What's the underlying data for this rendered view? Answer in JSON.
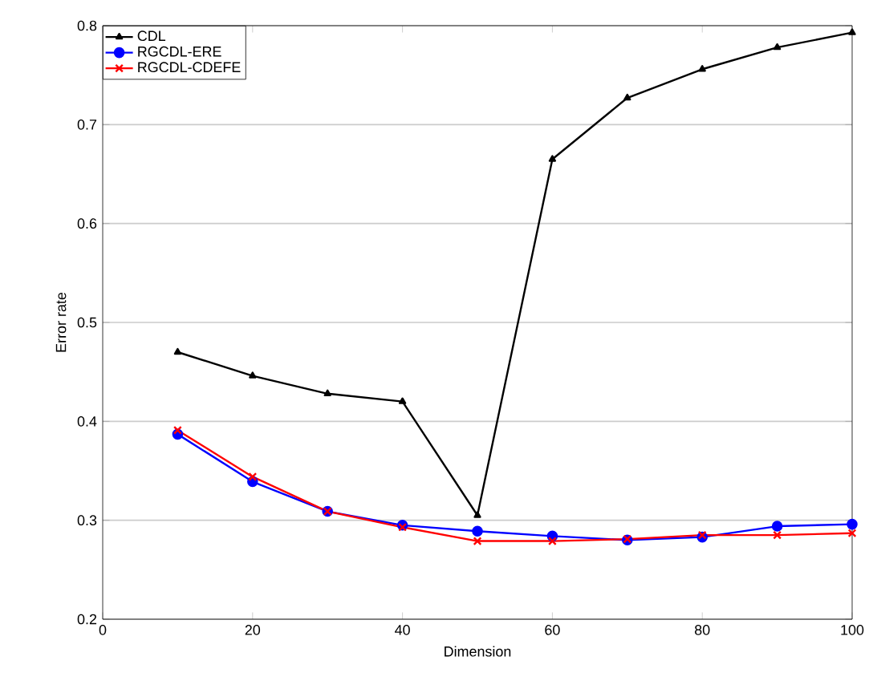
{
  "chart_data": {
    "type": "line",
    "xlabel": "Dimension",
    "ylabel": "Error rate",
    "x": [
      10,
      20,
      30,
      40,
      50,
      60,
      70,
      80,
      90,
      100
    ],
    "series": [
      {
        "name": "CDL",
        "color": "#000000",
        "marker": "triangle",
        "values": [
          0.47,
          0.446,
          0.428,
          0.42,
          0.305,
          0.665,
          0.727,
          0.756,
          0.778,
          0.793
        ]
      },
      {
        "name": "RGCDL-ERE",
        "color": "#0000ff",
        "marker": "circle",
        "values": [
          0.387,
          0.339,
          0.309,
          0.295,
          0.289,
          0.284,
          0.28,
          0.283,
          0.294,
          0.296
        ]
      },
      {
        "name": "RGCDL-CDEFE",
        "color": "#ff0000",
        "marker": "cross",
        "values": [
          0.391,
          0.344,
          0.309,
          0.293,
          0.279,
          0.279,
          0.281,
          0.285,
          0.285,
          0.287
        ]
      }
    ],
    "xlim": [
      0,
      100
    ],
    "xticks": [
      0,
      20,
      40,
      60,
      80,
      100
    ],
    "ylim": [
      0.2,
      0.8
    ],
    "yticks": [
      0.2,
      0.3,
      0.4,
      0.5,
      0.6,
      0.7,
      0.8
    ],
    "grid": "y",
    "legend": "top left",
    "line_style": "solid"
  }
}
